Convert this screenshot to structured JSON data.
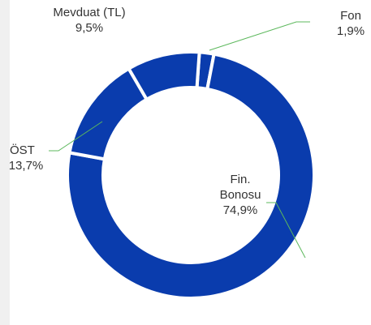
{
  "chart_data": {
    "type": "pie",
    "categories": [
      "Fon",
      "Fin. Bonosu",
      "ÖST",
      "Mevduat (TL)"
    ],
    "values": [
      1.9,
      74.9,
      13.7,
      9.5
    ],
    "value_labels": [
      "1,9%",
      "74,9%",
      "13,7%",
      "9,5%"
    ],
    "color": "#0a3cad"
  }
}
